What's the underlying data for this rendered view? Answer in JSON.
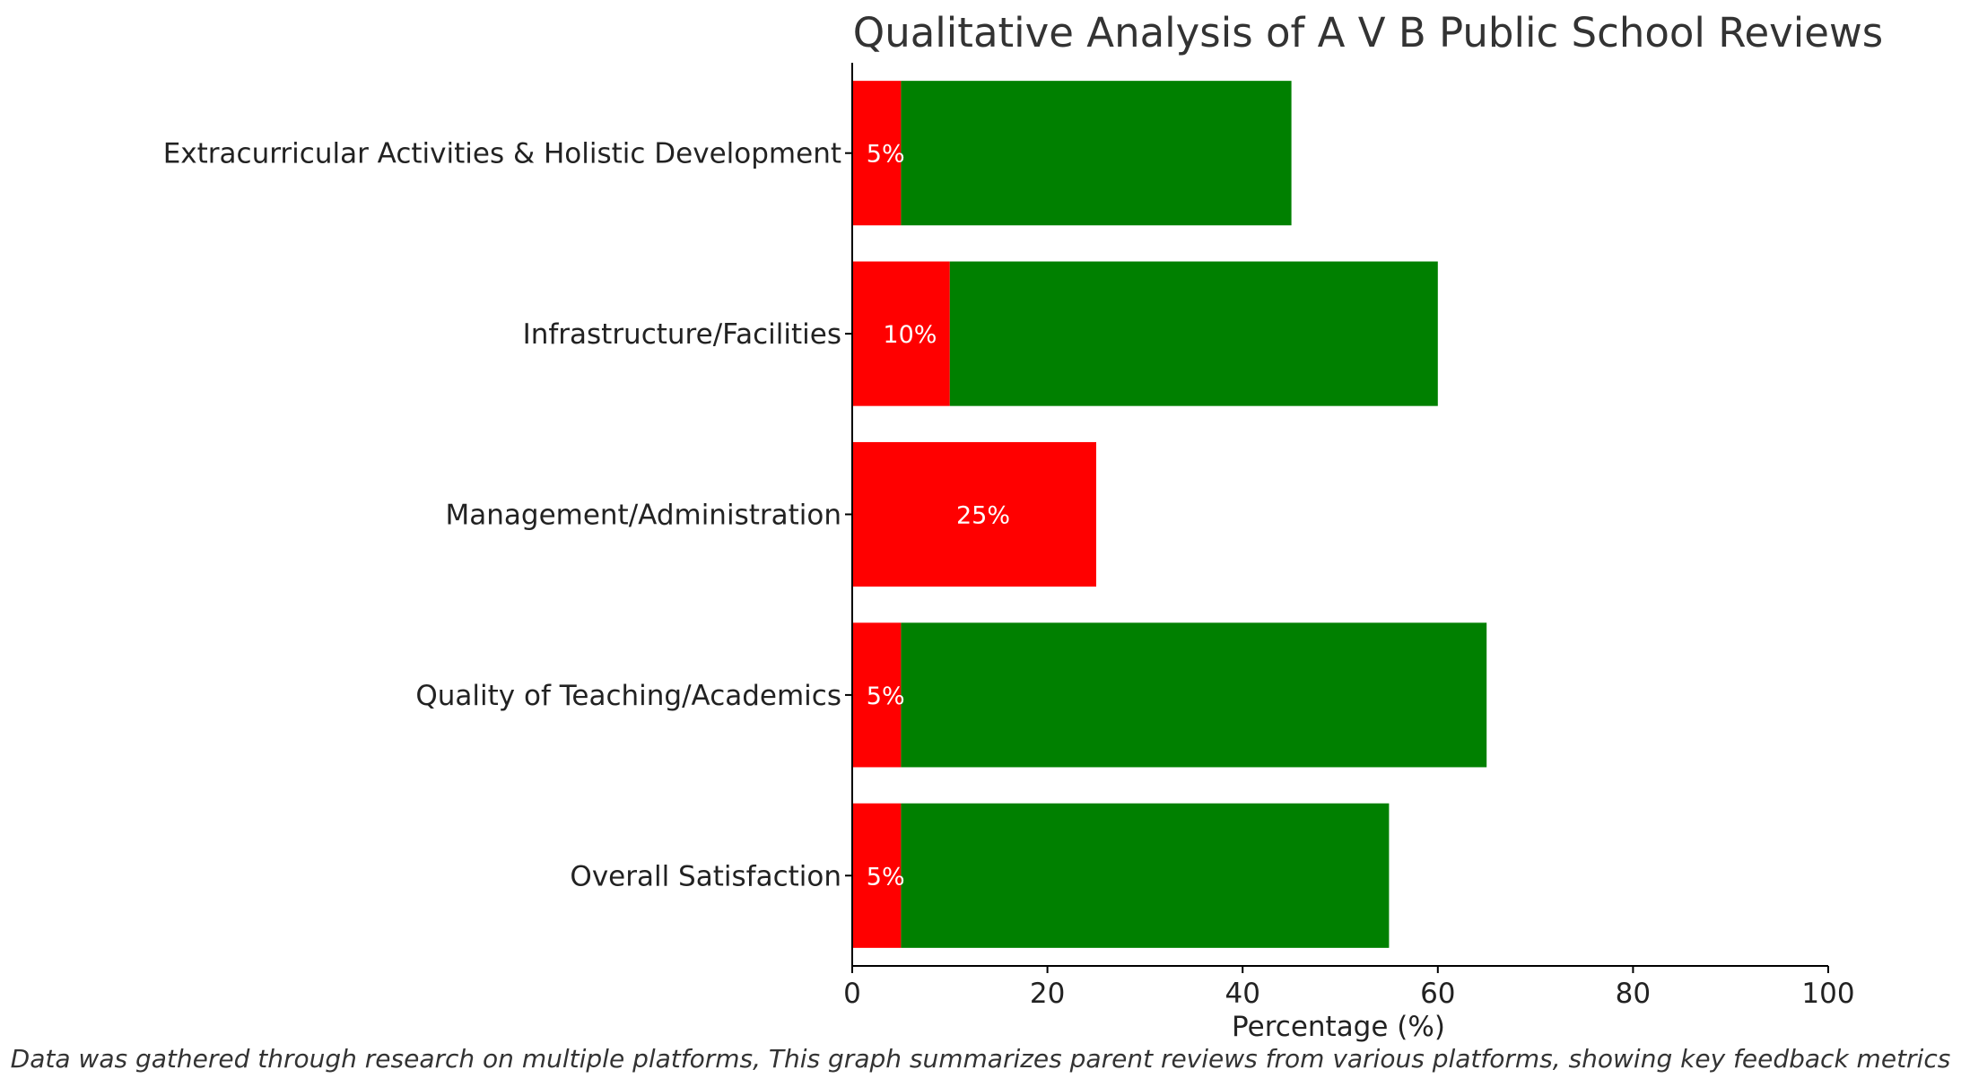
{
  "chart_data": {
    "type": "bar",
    "orientation": "horizontal",
    "stacked": true,
    "title": "Qualitative Analysis of A V B Public School Reviews",
    "xlabel": "Percentage (%)",
    "ylabel": "",
    "xlim": [
      0,
      100
    ],
    "xticks": [
      "0",
      "20",
      "40",
      "60",
      "80",
      "100"
    ],
    "categories": [
      "Overall Satisfaction",
      "Quality of Teaching/Academics",
      "Management/Administration",
      "Infrastructure/Facilities",
      "Extracurricular Activities & Holistic Development"
    ],
    "series": [
      {
        "color": "#ff0000",
        "values": [
          5,
          5,
          25,
          10,
          5
        ]
      },
      {
        "color": "#008000",
        "values": [
          50,
          60,
          0,
          50,
          40
        ]
      }
    ],
    "data_labels": [
      "5%",
      "5%",
      "25%",
      "10%",
      "5%"
    ],
    "grid": false,
    "legend": "none",
    "caption": "Data was gathered through research on multiple platforms, This graph summarizes parent reviews from various platforms, showing key feedback metrics"
  }
}
